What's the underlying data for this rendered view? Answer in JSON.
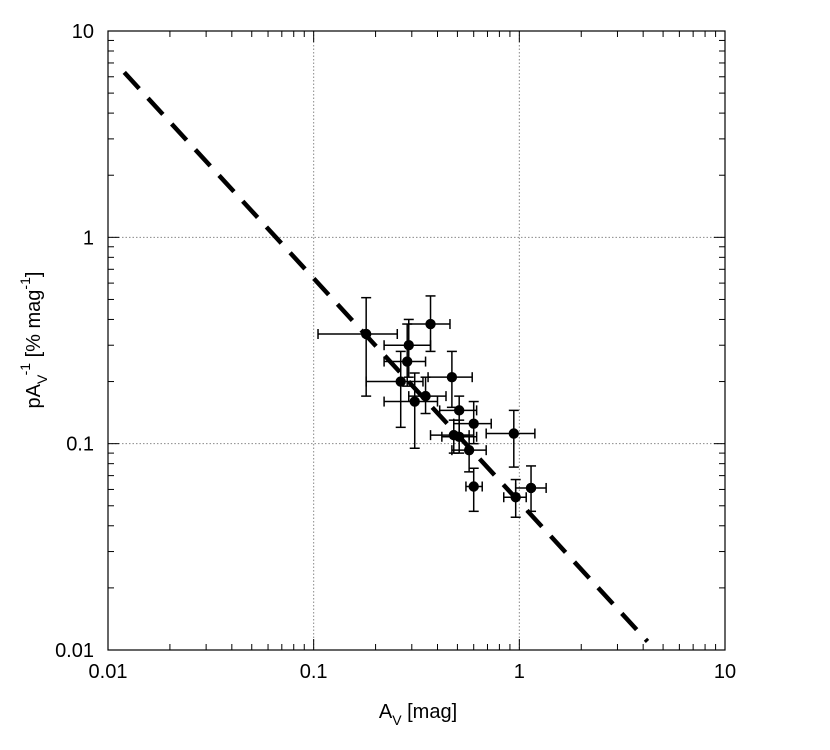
{
  "chart_data": {
    "type": "scatter",
    "title": "",
    "x_scale": "log",
    "y_scale": "log",
    "xlim": [
      0.01,
      10
    ],
    "ylim": [
      0.01,
      10
    ],
    "grid": true,
    "x_ticks": [
      {
        "value": 0.01,
        "label": "0.01"
      },
      {
        "value": 0.1,
        "label": "0.1"
      },
      {
        "value": 1,
        "label": "1"
      },
      {
        "value": 10,
        "label": "10"
      }
    ],
    "y_ticks": [
      {
        "value": 0.01,
        "label": "0.01"
      },
      {
        "value": 0.1,
        "label": "0.1"
      },
      {
        "value": 1,
        "label": "1"
      },
      {
        "value": 10,
        "label": "10"
      }
    ],
    "xlabel": {
      "main": "A",
      "sub": "V",
      "rest": " [mag]"
    },
    "ylabel": {
      "main": "pA",
      "sub": "V",
      "sup": "-1",
      "rest": " [% mag",
      "rest_sup": "-1",
      "end": "]"
    },
    "points": [
      {
        "x": 0.18,
        "y": 0.34,
        "xerr": [
          0.105,
          0.255
        ],
        "yerr": [
          0.17,
          0.51
        ]
      },
      {
        "x": 0.37,
        "y": 0.38,
        "xerr": [
          0.29,
          0.46
        ],
        "yerr": [
          0.28,
          0.52
        ]
      },
      {
        "x": 0.29,
        "y": 0.3,
        "xerr": [
          0.22,
          0.37
        ],
        "yerr": [
          0.21,
          0.4
        ]
      },
      {
        "x": 0.285,
        "y": 0.25,
        "xerr": [
          0.22,
          0.35
        ],
        "yerr": [
          0.19,
          0.38
        ]
      },
      {
        "x": 0.265,
        "y": 0.2,
        "xerr": [
          0.18,
          0.34
        ],
        "yerr": [
          0.12,
          0.28
        ]
      },
      {
        "x": 0.47,
        "y": 0.21,
        "xerr": [
          0.36,
          0.59
        ],
        "yerr": [
          0.15,
          0.28
        ]
      },
      {
        "x": 0.31,
        "y": 0.16,
        "xerr": [
          0.22,
          0.4
        ],
        "yerr": [
          0.095,
          0.22
        ]
      },
      {
        "x": 0.35,
        "y": 0.17,
        "xerr": [
          0.29,
          0.44
        ],
        "yerr": [
          0.14,
          0.21
        ]
      },
      {
        "x": 0.51,
        "y": 0.145,
        "xerr": [
          0.41,
          0.62
        ],
        "yerr": [
          0.11,
          0.17
        ]
      },
      {
        "x": 0.6,
        "y": 0.125,
        "xerr": [
          0.48,
          0.73
        ],
        "yerr": [
          0.1,
          0.16
        ]
      },
      {
        "x": 0.48,
        "y": 0.11,
        "xerr": [
          0.37,
          0.57
        ],
        "yerr": [
          0.09,
          0.13
        ]
      },
      {
        "x": 0.51,
        "y": 0.108,
        "xerr": [
          0.42,
          0.62
        ],
        "yerr": [
          0.09,
          0.13
        ]
      },
      {
        "x": 0.57,
        "y": 0.093,
        "xerr": [
          0.47,
          0.69
        ],
        "yerr": [
          0.073,
          0.11
        ]
      },
      {
        "x": 0.94,
        "y": 0.112,
        "xerr": [
          0.69,
          1.19
        ],
        "yerr": [
          0.077,
          0.145
        ]
      },
      {
        "x": 0.6,
        "y": 0.062,
        "xerr": [
          0.55,
          0.66
        ],
        "yerr": [
          0.047,
          0.076
        ]
      },
      {
        "x": 0.96,
        "y": 0.055,
        "xerr": [
          0.84,
          1.08
        ],
        "yerr": [
          0.044,
          0.067
        ]
      },
      {
        "x": 1.14,
        "y": 0.061,
        "xerr": [
          0.96,
          1.35
        ],
        "yerr": [
          0.047,
          0.078
        ]
      }
    ],
    "fit_line": {
      "style": "dashed",
      "x": [
        0.012,
        4.2
      ],
      "y": [
        6.3,
        0.011
      ]
    }
  }
}
